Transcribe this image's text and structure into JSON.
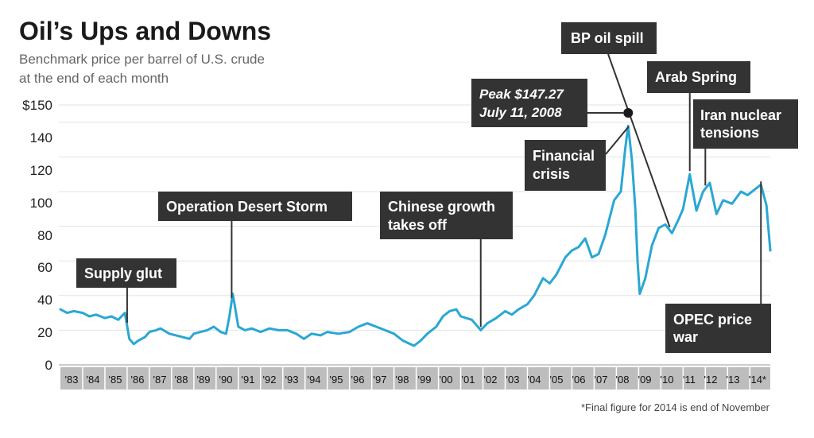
{
  "chart_data": {
    "type": "line",
    "title": "Oil’s Ups and Downs",
    "subtitle_lines": [
      "Benchmark price per barrel of U.S. crude",
      "at the end of each month"
    ],
    "ylim": [
      0,
      150
    ],
    "ytick_labels": [
      "$150",
      "140",
      "120",
      "100",
      "80",
      "60",
      "40",
      "20",
      "0"
    ],
    "ytick_values": [
      150,
      140,
      120,
      100,
      80,
      60,
      40,
      20,
      0
    ],
    "xlim": [
      1983,
      2014.92
    ],
    "xtick_labels": [
      "'83",
      "'84",
      "'85",
      "'86",
      "'87",
      "'88",
      "'89",
      "'90",
      "'91",
      "'92",
      "'93",
      "'94",
      "'95",
      "'96",
      "'97",
      "'98",
      "'99",
      "'00",
      "'01",
      "'02",
      "'03",
      "'04",
      "'05",
      "'06",
      "'07",
      "'08",
      "'09",
      "'10",
      "'11",
      "'12",
      "'13",
      "'14*"
    ],
    "grid": true,
    "series": [
      {
        "name": "U.S. crude benchmark price",
        "color": "#2aa7d4",
        "x": [
          1983.0,
          1983.3,
          1983.6,
          1984.0,
          1984.3,
          1984.6,
          1985.0,
          1985.3,
          1985.6,
          1985.9,
          1986.1,
          1986.3,
          1986.5,
          1986.8,
          1987.0,
          1987.3,
          1987.5,
          1987.9,
          1988.2,
          1988.5,
          1988.8,
          1989.0,
          1989.3,
          1989.6,
          1989.9,
          1990.2,
          1990.45,
          1990.6,
          1990.75,
          1991.0,
          1991.3,
          1991.6,
          1992.0,
          1992.4,
          1992.8,
          1993.2,
          1993.6,
          1993.95,
          1994.3,
          1994.7,
          1995.0,
          1995.5,
          1996.0,
          1996.4,
          1996.8,
          1997.2,
          1997.6,
          1998.0,
          1998.4,
          1998.9,
          1999.2,
          1999.5,
          1999.9,
          2000.2,
          2000.5,
          2000.8,
          2001.0,
          2001.5,
          2001.9,
          2002.2,
          2002.6,
          2003.0,
          2003.3,
          2003.6,
          2004.0,
          2004.3,
          2004.7,
          2005.0,
          2005.3,
          2005.7,
          2006.0,
          2006.3,
          2006.6,
          2006.9,
          2007.2,
          2007.5,
          2007.9,
          2008.2,
          2008.4,
          2008.53,
          2008.7,
          2008.85,
          2008.95,
          2009.05,
          2009.3,
          2009.6,
          2009.9,
          2010.2,
          2010.5,
          2010.8,
          2011.0,
          2011.3,
          2011.6,
          2011.9,
          2012.2,
          2012.5,
          2012.8,
          2013.2,
          2013.6,
          2013.9,
          2014.2,
          2014.5,
          2014.75,
          2014.92
        ],
        "values": [
          32,
          30,
          31,
          30,
          28,
          29,
          27,
          28,
          26,
          30,
          15,
          12,
          14,
          16,
          19,
          20,
          21,
          18,
          17,
          16,
          15,
          18,
          19,
          20,
          22,
          19,
          18,
          28,
          41,
          22,
          20,
          21,
          19,
          21,
          20,
          20,
          18,
          15,
          18,
          17,
          19,
          18,
          19,
          22,
          24,
          22,
          20,
          18,
          14,
          11,
          14,
          18,
          22,
          28,
          31,
          32,
          28,
          26,
          20,
          24,
          27,
          31,
          29,
          32,
          35,
          40,
          50,
          47,
          52,
          62,
          66,
          68,
          73,
          62,
          64,
          75,
          95,
          100,
          125,
          138,
          118,
          90,
          60,
          41,
          50,
          69,
          79,
          81,
          76,
          84,
          90,
          110,
          89,
          100,
          105,
          87,
          95,
          93,
          100,
          98,
          101,
          104,
          92,
          66
        ]
      }
    ],
    "annotations": [
      {
        "label": "Supply glut",
        "year": 1986.0
      },
      {
        "label": "Operation Desert Storm",
        "year": 1990.7
      },
      {
        "label_lines": [
          "Chinese growth",
          "takes off"
        ],
        "year": 2001.9
      },
      {
        "label_lines": [
          "Financial",
          "crisis"
        ],
        "year": 2008.55
      },
      {
        "label": "BP oil spill",
        "year": 2010.4
      },
      {
        "label": "Arab Spring",
        "year": 2011.3
      },
      {
        "label_lines": [
          "Iran nuclear",
          "tensions"
        ],
        "year": 2012.0
      },
      {
        "label_lines": [
          "OPEC price",
          "war"
        ],
        "year": 2014.5
      }
    ],
    "peak": {
      "label_lines": [
        "Peak $147.27",
        "July 11, 2008"
      ],
      "value": 147.27,
      "year": 2008.53
    },
    "footnote": "*Final figure for 2014 is end of November"
  }
}
